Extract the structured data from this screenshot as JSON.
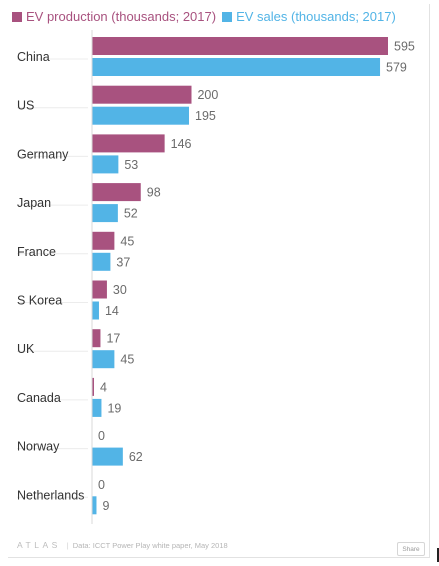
{
  "legend": {
    "production_label": "EV production (thousands; 2017)",
    "sales_label": "EV sales (thousands; 2017)"
  },
  "colors": {
    "production": "#a8527f",
    "sales": "#52b4e6",
    "category_text": "#333333",
    "value_text": "#6b6b6b",
    "grid": "#ececec"
  },
  "footer": {
    "logo": "ATLAS",
    "separator": "|",
    "source": "Data: ICCT Power Play white paper, May 2018",
    "share_label": "Share"
  },
  "chart_data": {
    "type": "bar",
    "orientation": "horizontal",
    "categories": [
      "China",
      "US",
      "Germany",
      "Japan",
      "France",
      "S Korea",
      "UK",
      "Canada",
      "Norway",
      "Netherlands"
    ],
    "series": [
      {
        "name": "EV production (thousands; 2017)",
        "values": [
          595,
          200,
          146,
          98,
          45,
          30,
          17,
          4,
          0,
          0
        ]
      },
      {
        "name": "EV sales (thousands; 2017)",
        "values": [
          579,
          195,
          53,
          52,
          37,
          14,
          45,
          19,
          62,
          9
        ]
      }
    ],
    "xlim": [
      0,
      595
    ],
    "grid": false,
    "legend_position": "top-left",
    "data_labels": true
  }
}
